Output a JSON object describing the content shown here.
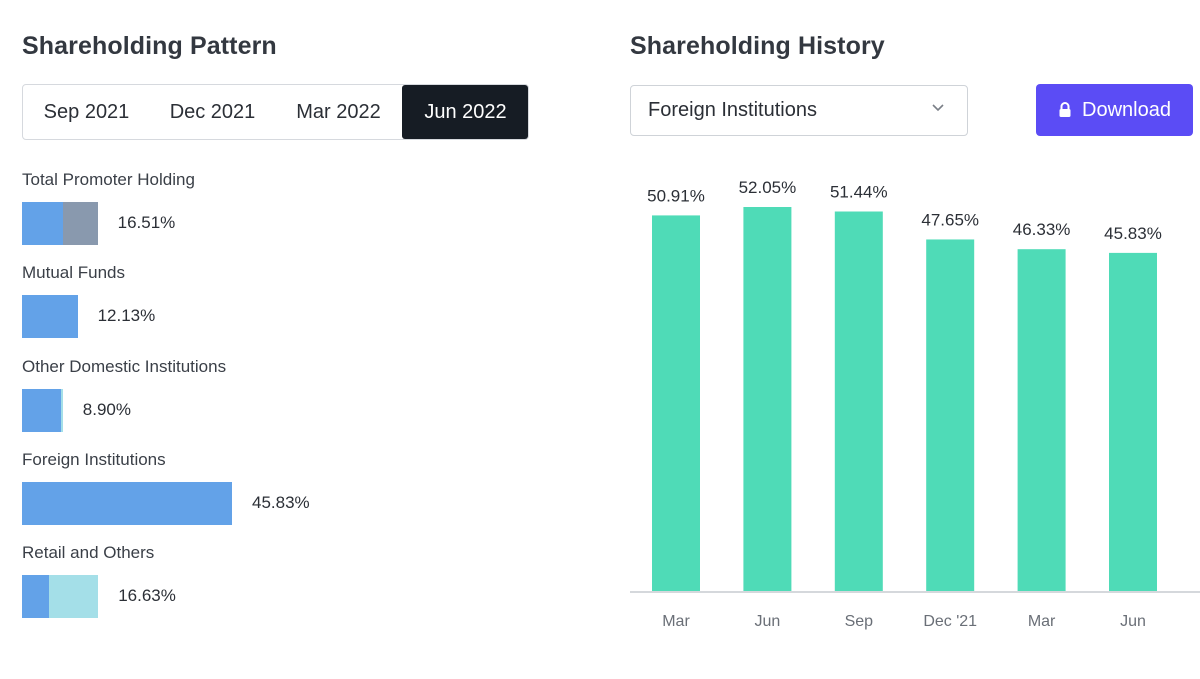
{
  "pattern": {
    "title": "Shareholding Pattern",
    "tabs": [
      "Sep 2021",
      "Dec 2021",
      "Mar 2022",
      "Jun 2022"
    ],
    "active_tab": 3,
    "holdings": [
      {
        "label": "Total Promoter Holding",
        "value": "16.51%",
        "segments": [
          {
            "color": "#63a2e8",
            "percent": 9.0
          },
          {
            "color": "#8999ae",
            "percent": 7.51
          }
        ]
      },
      {
        "label": "Mutual Funds",
        "value": "12.13%",
        "segments": [
          {
            "color": "#63a2e8",
            "percent": 12.13
          }
        ]
      },
      {
        "label": "Other Domestic Institutions",
        "value": "8.90%",
        "segments": [
          {
            "color": "#63a2e8",
            "percent": 8.5
          },
          {
            "color": "#a4dfe8",
            "percent": 0.4
          }
        ]
      },
      {
        "label": "Foreign Institutions",
        "value": "45.83%",
        "segments": [
          {
            "color": "#63a2e8",
            "percent": 45.83
          }
        ]
      },
      {
        "label": "Retail and Others",
        "value": "16.63%",
        "segments": [
          {
            "color": "#63a2e8",
            "percent": 5.8
          },
          {
            "color": "#a4dfe8",
            "percent": 10.83
          }
        ]
      }
    ]
  },
  "history": {
    "title": "Shareholding History",
    "dropdown_value": "Foreign Institutions",
    "download_label": "Download"
  },
  "colors": {
    "accent": "#5b4cf5",
    "bar": "#4fdbb7",
    "active_tab_bg": "#161c24"
  },
  "chart_data": {
    "type": "bar",
    "categories": [
      "Mar",
      "Jun",
      "Sep",
      "Dec '21",
      "Mar",
      "Jun"
    ],
    "values": [
      50.91,
      52.05,
      51.44,
      47.65,
      46.33,
      45.83
    ],
    "value_labels": [
      "50.91%",
      "52.05%",
      "51.44%",
      "47.65%",
      "46.33%",
      "45.83%"
    ],
    "series_name": "Foreign Institutions",
    "ylim": [
      0,
      60
    ],
    "grid": false
  }
}
